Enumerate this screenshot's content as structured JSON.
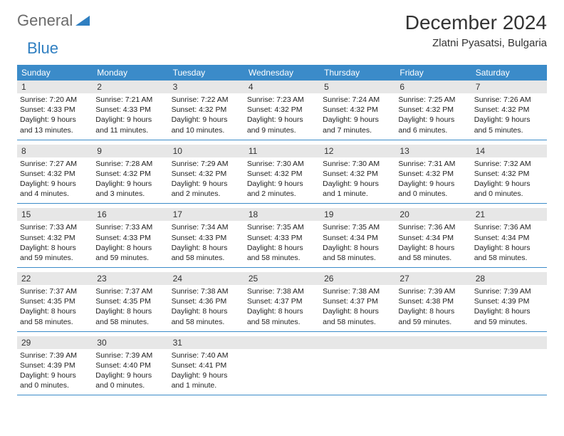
{
  "brand": {
    "general": "General",
    "blue": "Blue"
  },
  "title": "December 2024",
  "location": "Zlatni Pyasatsi, Bulgaria",
  "weekdays": [
    "Sunday",
    "Monday",
    "Tuesday",
    "Wednesday",
    "Thursday",
    "Friday",
    "Saturday"
  ],
  "style": {
    "header_bg": "#3b8bc9",
    "header_text": "#ffffff",
    "daynum_bg": "#e7e7e7",
    "text_color": "#222222",
    "title_color": "#333333",
    "brand_gray": "#6b6b6b",
    "brand_blue": "#2f7fc1",
    "border_color": "#3b8bc9",
    "body_font_size": 10.5,
    "title_font_size": 28,
    "location_font_size": 15,
    "weekday_font_size": 12
  },
  "days": [
    {
      "n": "1",
      "sr": "7:20 AM",
      "ss": "4:33 PM",
      "dl": "9 hours and 13 minutes."
    },
    {
      "n": "2",
      "sr": "7:21 AM",
      "ss": "4:33 PM",
      "dl": "9 hours and 11 minutes."
    },
    {
      "n": "3",
      "sr": "7:22 AM",
      "ss": "4:32 PM",
      "dl": "9 hours and 10 minutes."
    },
    {
      "n": "4",
      "sr": "7:23 AM",
      "ss": "4:32 PM",
      "dl": "9 hours and 9 minutes."
    },
    {
      "n": "5",
      "sr": "7:24 AM",
      "ss": "4:32 PM",
      "dl": "9 hours and 7 minutes."
    },
    {
      "n": "6",
      "sr": "7:25 AM",
      "ss": "4:32 PM",
      "dl": "9 hours and 6 minutes."
    },
    {
      "n": "7",
      "sr": "7:26 AM",
      "ss": "4:32 PM",
      "dl": "9 hours and 5 minutes."
    },
    {
      "n": "8",
      "sr": "7:27 AM",
      "ss": "4:32 PM",
      "dl": "9 hours and 4 minutes."
    },
    {
      "n": "9",
      "sr": "7:28 AM",
      "ss": "4:32 PM",
      "dl": "9 hours and 3 minutes."
    },
    {
      "n": "10",
      "sr": "7:29 AM",
      "ss": "4:32 PM",
      "dl": "9 hours and 2 minutes."
    },
    {
      "n": "11",
      "sr": "7:30 AM",
      "ss": "4:32 PM",
      "dl": "9 hours and 2 minutes."
    },
    {
      "n": "12",
      "sr": "7:30 AM",
      "ss": "4:32 PM",
      "dl": "9 hours and 1 minute."
    },
    {
      "n": "13",
      "sr": "7:31 AM",
      "ss": "4:32 PM",
      "dl": "9 hours and 0 minutes."
    },
    {
      "n": "14",
      "sr": "7:32 AM",
      "ss": "4:32 PM",
      "dl": "9 hours and 0 minutes."
    },
    {
      "n": "15",
      "sr": "7:33 AM",
      "ss": "4:32 PM",
      "dl": "8 hours and 59 minutes."
    },
    {
      "n": "16",
      "sr": "7:33 AM",
      "ss": "4:33 PM",
      "dl": "8 hours and 59 minutes."
    },
    {
      "n": "17",
      "sr": "7:34 AM",
      "ss": "4:33 PM",
      "dl": "8 hours and 58 minutes."
    },
    {
      "n": "18",
      "sr": "7:35 AM",
      "ss": "4:33 PM",
      "dl": "8 hours and 58 minutes."
    },
    {
      "n": "19",
      "sr": "7:35 AM",
      "ss": "4:34 PM",
      "dl": "8 hours and 58 minutes."
    },
    {
      "n": "20",
      "sr": "7:36 AM",
      "ss": "4:34 PM",
      "dl": "8 hours and 58 minutes."
    },
    {
      "n": "21",
      "sr": "7:36 AM",
      "ss": "4:34 PM",
      "dl": "8 hours and 58 minutes."
    },
    {
      "n": "22",
      "sr": "7:37 AM",
      "ss": "4:35 PM",
      "dl": "8 hours and 58 minutes."
    },
    {
      "n": "23",
      "sr": "7:37 AM",
      "ss": "4:35 PM",
      "dl": "8 hours and 58 minutes."
    },
    {
      "n": "24",
      "sr": "7:38 AM",
      "ss": "4:36 PM",
      "dl": "8 hours and 58 minutes."
    },
    {
      "n": "25",
      "sr": "7:38 AM",
      "ss": "4:37 PM",
      "dl": "8 hours and 58 minutes."
    },
    {
      "n": "26",
      "sr": "7:38 AM",
      "ss": "4:37 PM",
      "dl": "8 hours and 58 minutes."
    },
    {
      "n": "27",
      "sr": "7:39 AM",
      "ss": "4:38 PM",
      "dl": "8 hours and 59 minutes."
    },
    {
      "n": "28",
      "sr": "7:39 AM",
      "ss": "4:39 PM",
      "dl": "8 hours and 59 minutes."
    },
    {
      "n": "29",
      "sr": "7:39 AM",
      "ss": "4:39 PM",
      "dl": "9 hours and 0 minutes."
    },
    {
      "n": "30",
      "sr": "7:39 AM",
      "ss": "4:40 PM",
      "dl": "9 hours and 0 minutes."
    },
    {
      "n": "31",
      "sr": "7:40 AM",
      "ss": "4:41 PM",
      "dl": "9 hours and 1 minute."
    }
  ],
  "labels": {
    "sunrise_prefix": "Sunrise: ",
    "sunset_prefix": "Sunset: ",
    "daylight_prefix": "Daylight: "
  }
}
